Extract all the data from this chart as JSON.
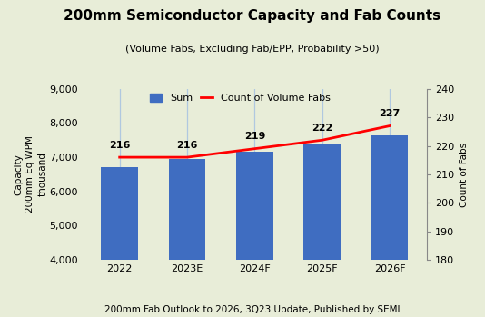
{
  "title": "200mm Semiconductor Capacity and Fab Counts",
  "subtitle": "(Volume Fabs, Excluding Fab/EPP, Probability >50)",
  "ylabel_left": "Capacity\n200mm Eq WPM\nthousand",
  "ylabel_right": "Count of Fabs",
  "footer": "200mm Fab Outlook to 2026, 3Q23 Update, Published by SEMI",
  "categories": [
    "2022",
    "2023E",
    "2024F",
    "2025F",
    "2026F"
  ],
  "bar_values": [
    6700,
    6950,
    7150,
    7380,
    7650
  ],
  "line_values": [
    216,
    216,
    219,
    222,
    227
  ],
  "bar_color": "#3F6DC1",
  "line_color": "#FF0000",
  "background_color": "#E8EDD8",
  "vline_color": "#B0C8E0",
  "ylim_left": [
    4000,
    9000
  ],
  "ylim_right": [
    180,
    240
  ],
  "yticks_left": [
    4000,
    5000,
    6000,
    7000,
    8000,
    9000
  ],
  "yticks_right": [
    180,
    190,
    200,
    210,
    220,
    230,
    240
  ],
  "title_fontsize": 11,
  "subtitle_fontsize": 8,
  "label_fontsize": 7.5,
  "tick_fontsize": 8,
  "bar_label_fontsize": 8,
  "footer_fontsize": 7.5,
  "legend_fontsize": 8
}
